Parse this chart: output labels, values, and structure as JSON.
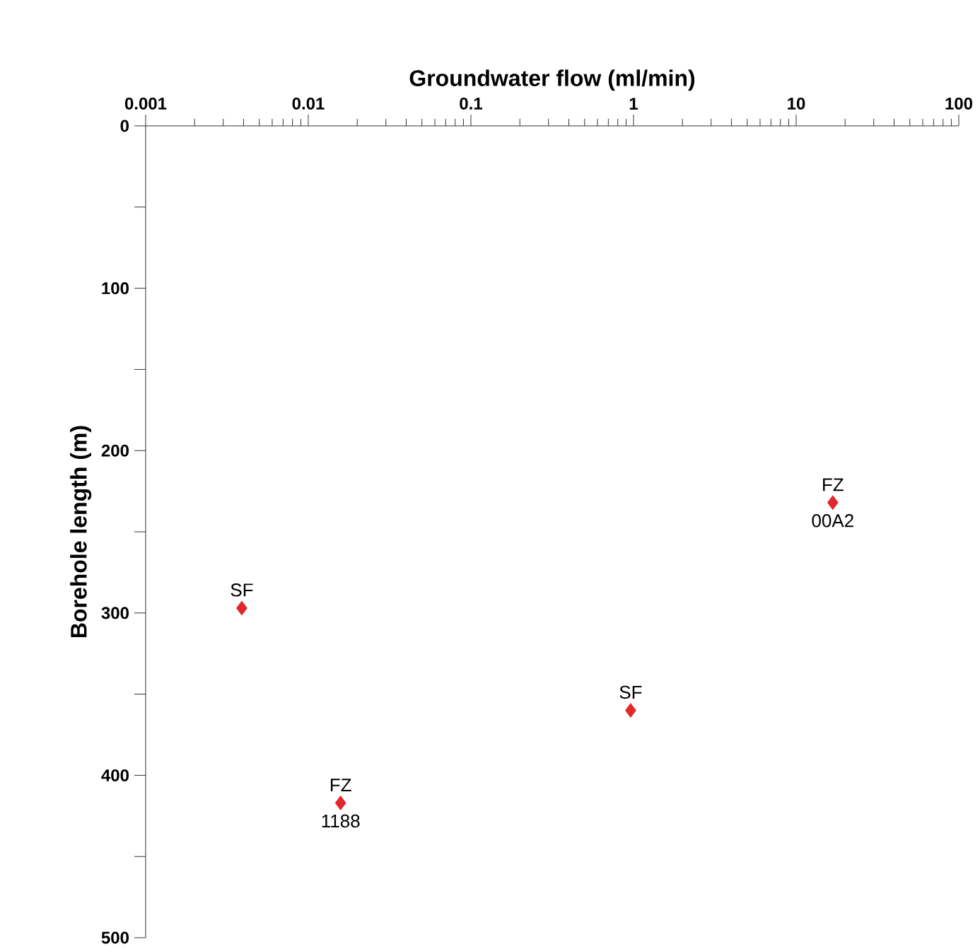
{
  "chart_data": {
    "type": "scatter",
    "xlabel": "Groundwater flow (ml/min)",
    "ylabel": "Borehole length (m)",
    "log": "x",
    "color": "#e3262a",
    "marker": "diamond",
    "x": [
      0.0039,
      0.0158,
      0.96,
      16.8
    ],
    "values": [
      297,
      417,
      360,
      232
    ],
    "xlim": [
      0.001,
      100
    ],
    "ylim": [
      500,
      0
    ],
    "xticks": [
      0.001,
      0.01,
      0.1,
      1,
      10,
      100
    ],
    "yticks": [
      0,
      {
        "value": 50,
        "label": null
      },
      100,
      {
        "value": 150,
        "label": null
      },
      200,
      {
        "value": 250,
        "label": null
      },
      300,
      {
        "value": 350,
        "label": null
      },
      400,
      {
        "value": 450,
        "label": null
      },
      500
    ],
    "annotations": [
      {
        "text": "SF",
        "x": 0.0039,
        "y": 297
      },
      {
        "text": "FZ",
        "x": 0.0158,
        "y": 417
      },
      {
        "text": "1188",
        "x": 0.0158,
        "y": 417
      },
      {
        "text": "SF",
        "x": 0.96,
        "y": 360
      },
      {
        "text": "FZ",
        "x": 16.8,
        "y": 232
      },
      {
        "text": "00A2",
        "x": 16.8,
        "y": 232
      }
    ]
  }
}
